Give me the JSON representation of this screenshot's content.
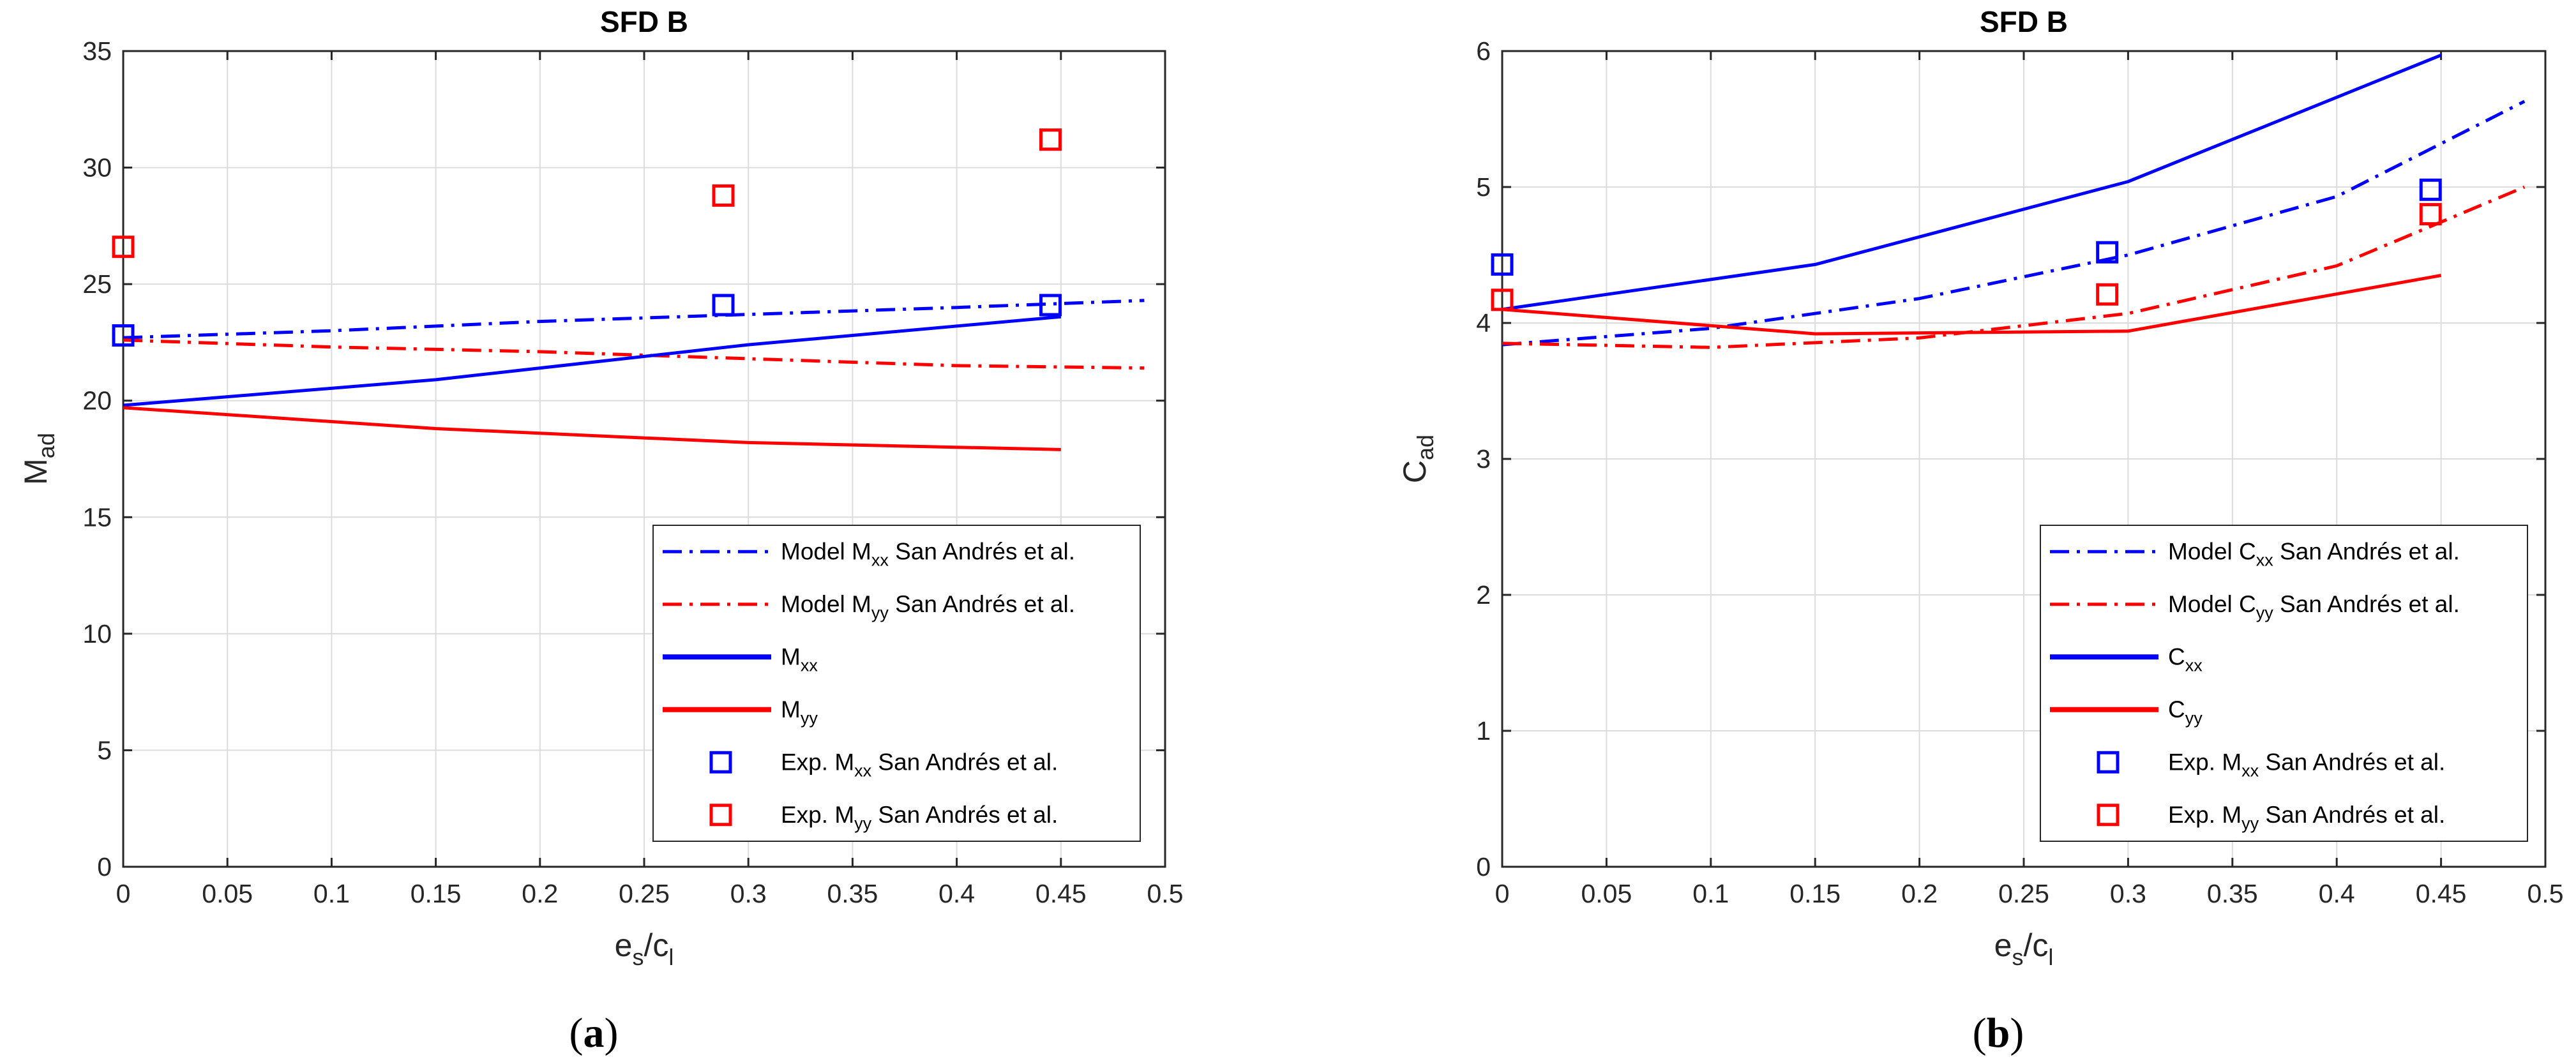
{
  "chart_data": [
    {
      "type": "line",
      "panel": "a",
      "caption_letter": "a",
      "title": "SFD B",
      "ylabel_main": "M",
      "ylabel_sub": "ad",
      "xlabel_main": "e",
      "xlabel_sub1": "s",
      "xlabel_sep": "/c",
      "xlabel_sub2": "l",
      "xlim": [
        0,
        0.5
      ],
      "ylim": [
        0,
        35
      ],
      "xticks": [
        0,
        0.05,
        0.1,
        0.15,
        0.2,
        0.25,
        0.3,
        0.35,
        0.4,
        0.45,
        0.5
      ],
      "xtick_labels": [
        "0",
        "0.05",
        "0.1",
        "0.15",
        "0.2",
        "0.25",
        "0.3",
        "0.35",
        "0.4",
        "0.45",
        "0.5"
      ],
      "yticks": [
        0,
        5,
        10,
        15,
        20,
        25,
        30,
        35
      ],
      "ytick_labels": [
        "0",
        "5",
        "10",
        "15",
        "20",
        "25",
        "30",
        "35"
      ],
      "grid": true,
      "legend_position": "bottom-right",
      "series": [
        {
          "name": "Model M_xx San Andrés et al.",
          "legend_pre": "Model M",
          "legend_sub": "xx",
          "legend_post": " San Andrés et al.",
          "style": "dashdot",
          "color": "#0000ff",
          "x": [
            0,
            0.1,
            0.2,
            0.3,
            0.4,
            0.49
          ],
          "y": [
            22.7,
            23.0,
            23.4,
            23.7,
            24.0,
            24.3
          ]
        },
        {
          "name": "Model M_yy San Andrés et al.",
          "legend_pre": "Model M",
          "legend_sub": "yy",
          "legend_post": " San Andrés et al.",
          "style": "dashdot",
          "color": "#ff0000",
          "x": [
            0,
            0.1,
            0.2,
            0.3,
            0.4,
            0.49
          ],
          "y": [
            22.6,
            22.3,
            22.1,
            21.8,
            21.5,
            21.4
          ]
        },
        {
          "name": "M_xx",
          "legend_pre": "M",
          "legend_sub": "xx",
          "legend_post": "",
          "style": "solid",
          "color": "#0000ff",
          "x": [
            0,
            0.15,
            0.3,
            0.45
          ],
          "y": [
            19.8,
            20.9,
            22.4,
            23.6
          ]
        },
        {
          "name": "M_yy",
          "legend_pre": "M",
          "legend_sub": "yy",
          "legend_post": "",
          "style": "solid",
          "color": "#ff0000",
          "x": [
            0,
            0.15,
            0.3,
            0.45
          ],
          "y": [
            19.7,
            18.8,
            18.2,
            17.9
          ]
        },
        {
          "name": "Exp. M_xx San Andrés et al.",
          "legend_pre": "Exp. M",
          "legend_sub": "xx",
          "legend_post": " San Andrés et al.",
          "style": "square",
          "color": "#0000ff",
          "x": [
            0,
            0.288,
            0.445
          ],
          "y": [
            22.8,
            24.1,
            24.1
          ]
        },
        {
          "name": "Exp. M_yy San Andrés et al.",
          "legend_pre": "Exp. M",
          "legend_sub": "yy",
          "legend_post": " San Andrés et al.",
          "style": "square",
          "color": "#ff0000",
          "x": [
            0,
            0.288,
            0.445
          ],
          "y": [
            26.6,
            28.8,
            31.2
          ]
        }
      ]
    },
    {
      "type": "line",
      "panel": "b",
      "caption_letter": "b",
      "title": "SFD B",
      "ylabel_main": "C",
      "ylabel_sub": "ad",
      "xlabel_main": "e",
      "xlabel_sub1": "s",
      "xlabel_sep": "/c",
      "xlabel_sub2": "l",
      "xlim": [
        0,
        0.5
      ],
      "ylim": [
        0,
        6
      ],
      "xticks": [
        0,
        0.05,
        0.1,
        0.15,
        0.2,
        0.25,
        0.3,
        0.35,
        0.4,
        0.45,
        0.5
      ],
      "xtick_labels": [
        "0",
        "0.05",
        "0.1",
        "0.15",
        "0.2",
        "0.25",
        "0.3",
        "0.35",
        "0.4",
        "0.45",
        "0.5"
      ],
      "yticks": [
        0,
        1,
        2,
        3,
        4,
        5,
        6
      ],
      "ytick_labels": [
        "0",
        "1",
        "2",
        "3",
        "4",
        "5",
        "6"
      ],
      "grid": true,
      "legend_position": "bottom-right",
      "series": [
        {
          "name": "Model C_xx San Andrés et al.",
          "legend_pre": "Model C",
          "legend_sub": "xx",
          "legend_post": " San Andrés et al.",
          "style": "dashdot",
          "color": "#0000ff",
          "x": [
            0,
            0.1,
            0.2,
            0.3,
            0.4,
            0.49
          ],
          "y": [
            3.84,
            3.96,
            4.18,
            4.5,
            4.93,
            5.63
          ]
        },
        {
          "name": "Model C_yy San Andrés et al.",
          "legend_pre": "Model C",
          "legend_sub": "yy",
          "legend_post": " San Andrés et al.",
          "style": "dashdot",
          "color": "#ff0000",
          "x": [
            0,
            0.1,
            0.2,
            0.3,
            0.4,
            0.49
          ],
          "y": [
            3.85,
            3.82,
            3.89,
            4.07,
            4.42,
            5.0
          ]
        },
        {
          "name": "C_xx",
          "legend_pre": "C",
          "legend_sub": "xx",
          "legend_post": "",
          "style": "solid",
          "color": "#0000ff",
          "x": [
            0,
            0.15,
            0.3,
            0.45
          ],
          "y": [
            4.1,
            4.43,
            5.04,
            5.97
          ]
        },
        {
          "name": "C_yy",
          "legend_pre": "C",
          "legend_sub": "yy",
          "legend_post": "",
          "style": "solid",
          "color": "#ff0000",
          "x": [
            0,
            0.15,
            0.3,
            0.45
          ],
          "y": [
            4.1,
            3.92,
            3.94,
            4.35
          ]
        },
        {
          "name": "Exp. M_xx San Andrés et al.",
          "legend_pre": "Exp. M",
          "legend_sub": "xx",
          "legend_post": " San Andrés et al.",
          "style": "square",
          "color": "#0000ff",
          "x": [
            0,
            0.29,
            0.445
          ],
          "y": [
            4.43,
            4.52,
            4.98
          ]
        },
        {
          "name": "Exp. M_yy San Andrés et al.",
          "legend_pre": "Exp. M",
          "legend_sub": "yy",
          "legend_post": " San Andrés et al.",
          "style": "square",
          "color": "#ff0000",
          "x": [
            0,
            0.29,
            0.445
          ],
          "y": [
            4.17,
            4.21,
            4.8
          ]
        }
      ]
    }
  ]
}
